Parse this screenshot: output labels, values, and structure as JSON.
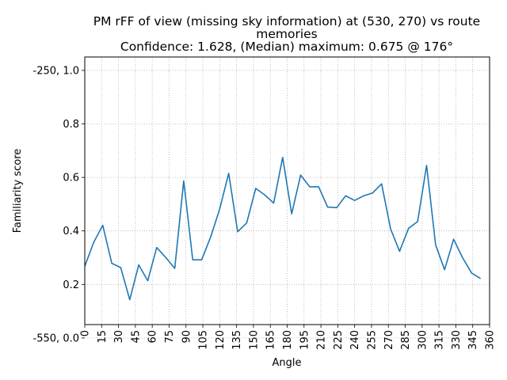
{
  "chart_data": {
    "type": "line",
    "title_lines": [
      "PM rFF of view (missing sky information) at (530, 270) vs route",
      "memories",
      "Confidence: 1.628, (Median) maximum: 0.675 @ 176°"
    ],
    "xlabel": "Angle",
    "ylabel": "Familiarity score",
    "xlim": [
      0,
      360
    ],
    "ylim": [
      0.05,
      1.05
    ],
    "grid": true,
    "line_color": "#1f77b4",
    "x_ticks": [
      0,
      15,
      30,
      45,
      60,
      75,
      90,
      105,
      120,
      135,
      150,
      165,
      180,
      195,
      210,
      225,
      240,
      255,
      270,
      285,
      300,
      315,
      330,
      345,
      360
    ],
    "y_ticks": [
      {
        "value": 1.0,
        "label": "-250, 1.0"
      },
      {
        "value": 0.8,
        "label": "0.8"
      },
      {
        "value": 0.6,
        "label": "0.6"
      },
      {
        "value": 0.4,
        "label": "0.4"
      },
      {
        "value": 0.2,
        "label": "0.2"
      },
      {
        "value": 0.0,
        "label": "-550, 0.0"
      }
    ],
    "series": [
      {
        "x": [
          0,
          8,
          16,
          24,
          32,
          40,
          48,
          56,
          64,
          72,
          80,
          88,
          96,
          104,
          112,
          120,
          128,
          136,
          144,
          152,
          160,
          168,
          176,
          184,
          192,
          200,
          208,
          216,
          224,
          232,
          240,
          248,
          256,
          264,
          272,
          280,
          288,
          296,
          304,
          312,
          320,
          328,
          336,
          344,
          352
        ],
        "values": [
          0.268,
          0.358,
          0.421,
          0.279,
          0.263,
          0.143,
          0.273,
          0.214,
          0.338,
          0.301,
          0.26,
          0.587,
          0.292,
          0.292,
          0.378,
          0.482,
          0.615,
          0.397,
          0.43,
          0.559,
          0.535,
          0.504,
          0.675,
          0.464,
          0.609,
          0.565,
          0.565,
          0.489,
          0.487,
          0.531,
          0.514,
          0.531,
          0.542,
          0.576,
          0.407,
          0.324,
          0.41,
          0.435,
          0.645,
          0.348,
          0.255,
          0.369,
          0.3,
          0.243,
          0.222
        ]
      }
    ]
  }
}
